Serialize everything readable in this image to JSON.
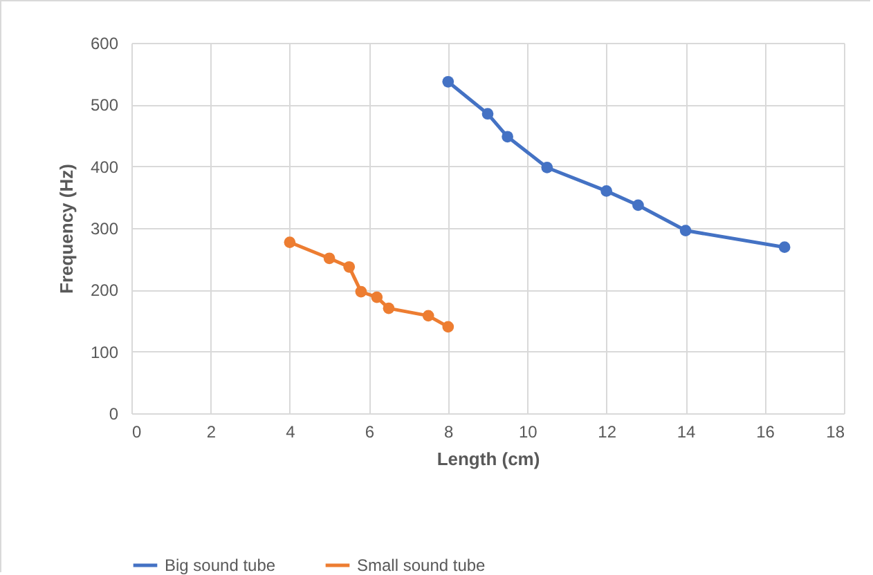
{
  "chart_data": {
    "type": "line",
    "xlabel": "Length (cm)",
    "ylabel": "Frequency (Hz)",
    "xlim": [
      0,
      18
    ],
    "xticks": [
      0,
      2,
      4,
      6,
      8,
      10,
      12,
      14,
      16,
      18
    ],
    "ylim": [
      0,
      600
    ],
    "yticks": [
      0,
      100,
      200,
      300,
      400,
      500,
      600
    ],
    "grid": true,
    "legend": "bottom",
    "marker": "circle",
    "series": [
      {
        "name": "Big sound tube",
        "color": "#4472c4",
        "x": [
          8,
          9,
          9.5,
          10.5,
          12,
          12.8,
          14,
          16.5
        ],
        "values": [
          537,
          485,
          448,
          398,
          360,
          337,
          296,
          269
        ]
      },
      {
        "name": "Small sound tube",
        "color": "#ed7d31",
        "x": [
          4,
          5,
          5.5,
          5.8,
          6.2,
          6.5,
          7.5,
          8
        ],
        "values": [
          277,
          251,
          237,
          197,
          188,
          170,
          158,
          140
        ]
      }
    ]
  }
}
